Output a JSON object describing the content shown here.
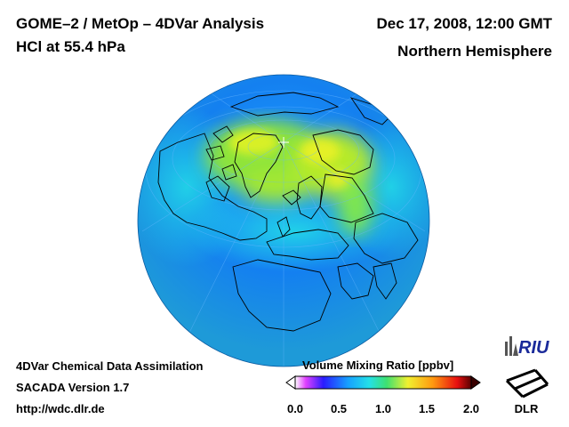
{
  "header": {
    "title_line1": "GOME–2 / MetOp – 4DVar Analysis",
    "title_line2": "HCl at 55.4 hPa",
    "date": "Dec 17, 2008, 12:00 GMT",
    "region": "Northern Hemisphere"
  },
  "footer": {
    "line1": "4DVar Chemical Data Assimilation",
    "line2": "SACADA Version 1.7",
    "line3": "http://wdc.dlr.de"
  },
  "colorbar": {
    "title": "Volume Mixing Ratio [ppbv]",
    "ticks": [
      "0.0",
      "0.5",
      "1.0",
      "1.5",
      "2.0"
    ],
    "min": 0.0,
    "max": 2.0,
    "colors": [
      "#ffffff",
      "#e040ff",
      "#2a1cff",
      "#16a0ff",
      "#23e0e8",
      "#3ee070",
      "#f0f030",
      "#ff9a10",
      "#e81010",
      "#5a0000"
    ]
  },
  "logos": {
    "riu": "RIU",
    "dlr": "DLR"
  },
  "map": {
    "projection": "orthographic",
    "field": "HCl volume mixing ratio"
  }
}
